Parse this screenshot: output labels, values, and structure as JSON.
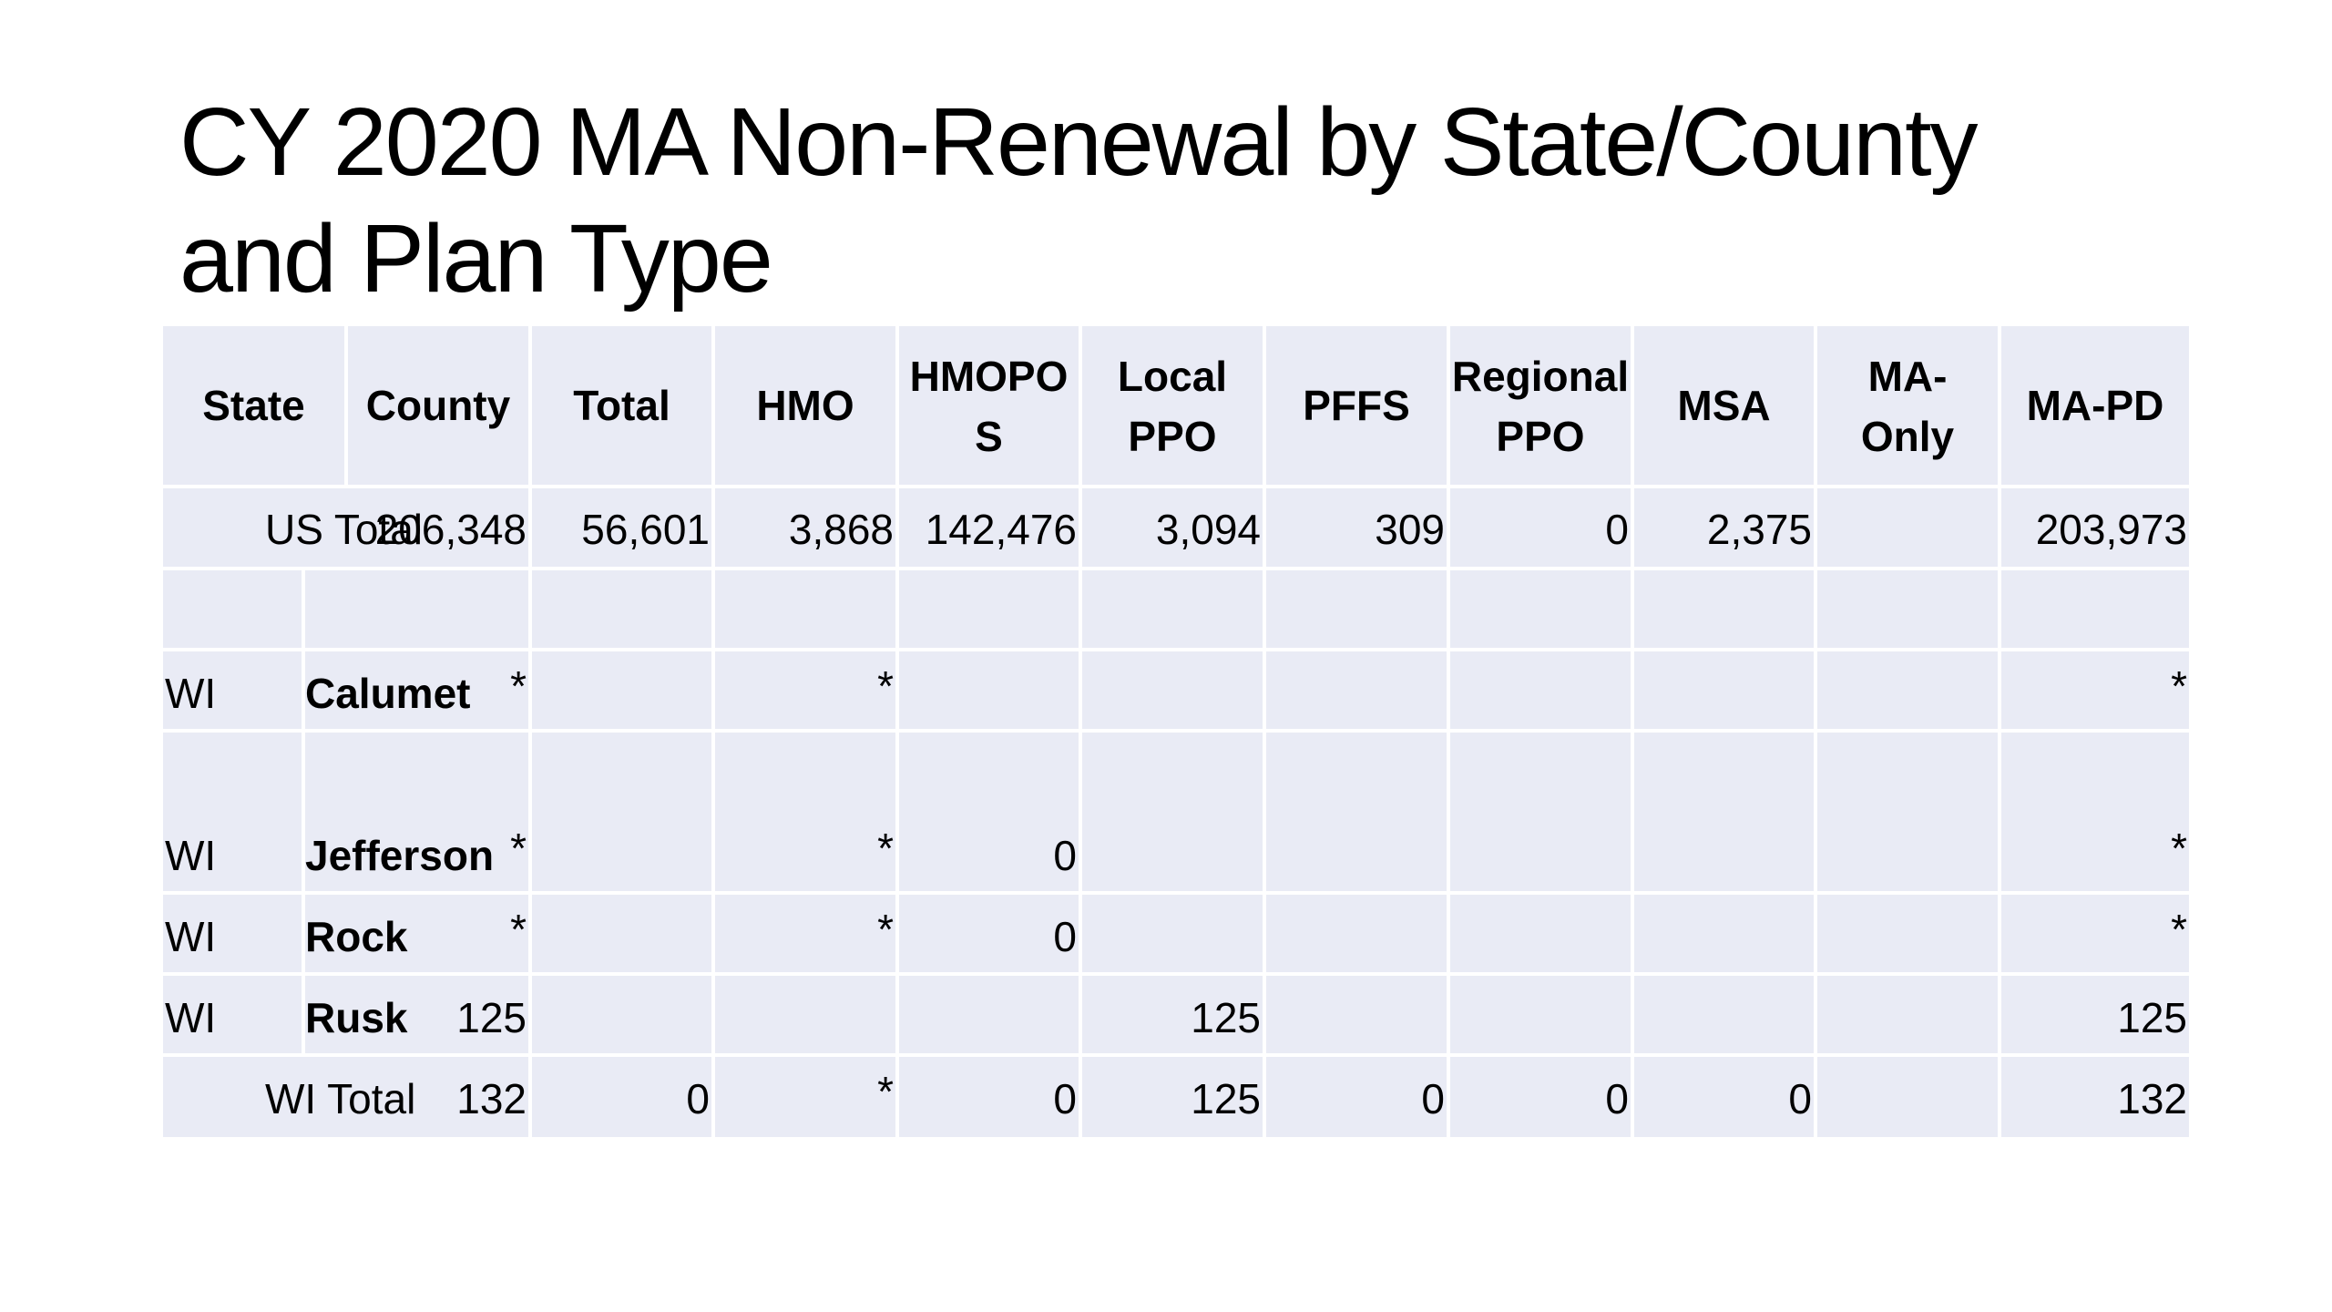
{
  "title": {
    "line1": "CY 2020 MA Non-Renewal by State/County",
    "line2": "and Plan Type"
  },
  "table": {
    "headers": {
      "state": "State",
      "county": "County",
      "total": "Total",
      "hmo": "HMO",
      "hmopos_1": "HMOPO",
      "hmopos_2": "S",
      "localppo_1": "Local",
      "localppo_2": "PPO",
      "pffs": "PFFS",
      "regionalppo_1": "Regional",
      "regionalppo_2": "PPO",
      "msa": "MSA",
      "maonly_1": "MA-",
      "maonly_2": "Only",
      "mapd": "MA-PD"
    },
    "us_total": {
      "label": "US Total",
      "total": "206,348",
      "hmo": "56,601",
      "hmopos": "3,868",
      "localppo": "142,476",
      "pffs": "3,094",
      "regionalppo": "309",
      "msa": "0",
      "maonly": "2,375",
      "mapd": "203,973"
    },
    "rows": [
      {
        "state": "WI",
        "county": "Calumet",
        "total": "*",
        "hmopos": "*",
        "localppo": "",
        "pffs": "",
        "mapd": "*"
      },
      {
        "state": "WI",
        "county": "Jefferson",
        "total": "*",
        "hmopos": "*",
        "localppo": "0",
        "pffs": "",
        "mapd": "*"
      },
      {
        "state": "WI",
        "county": "Rock",
        "total": "*",
        "hmopos": "*",
        "localppo": "0",
        "pffs": "",
        "mapd": "*"
      },
      {
        "state": "WI",
        "county": "Rusk",
        "total": "125",
        "hmopos": "",
        "localppo": "",
        "pffs": "125",
        "mapd": "125"
      }
    ],
    "wi_total": {
      "label": "WI Total",
      "total": "132",
      "hmo": "0",
      "hmopos": "*",
      "localppo": "0",
      "pffs": "125",
      "regionalppo": "0",
      "msa": "0",
      "maonly": "0",
      "mapd": "132"
    }
  },
  "colors": {
    "cell_fill": "#e9ebf5",
    "grid_line": "#ffffff"
  }
}
